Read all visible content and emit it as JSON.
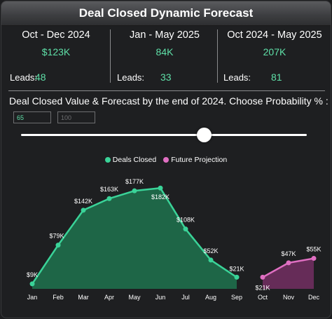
{
  "header": {
    "title": "Deal Closed Dynamic Forecast"
  },
  "kpis": [
    {
      "period": "Oct - Dec 2024",
      "amount": "$123K",
      "leads_label": "Leads:",
      "leads": "48"
    },
    {
      "period": "Jan - May 2025",
      "amount": "84K",
      "leads_label": "Leads:",
      "leads": "33"
    },
    {
      "period": "Oct 2024 - May 2025",
      "amount": "207K",
      "leads_label": "Leads:",
      "leads": "81"
    }
  ],
  "subtitle": "Deal Closed Value & Forecast by the end of 2024.  Choose Probability % :",
  "probability": {
    "min_value": "65",
    "max_value": "100",
    "slider_level": 0.64
  },
  "colors": {
    "accent": "#5fe0a8",
    "deals": "#3ad398",
    "projection": "#e06fc2"
  },
  "chart_data": {
    "type": "area",
    "legend_position": "top-center",
    "grid": false,
    "categories": [
      "Jan",
      "Feb",
      "Mar",
      "Apr",
      "May",
      "Jun",
      "Jul",
      "Aug",
      "Sep",
      "Oct",
      "Nov",
      "Dec"
    ],
    "ylim": [
      0,
      200
    ],
    "series": [
      {
        "name": "Deals Closed",
        "color": "#3ad398",
        "values": [
          9,
          79,
          142,
          163,
          177,
          182,
          108,
          52,
          21,
          null,
          null,
          null
        ],
        "labels": [
          "$9K",
          "$79K",
          "$142K",
          "$163K",
          "$177K",
          "$182K",
          "$108K",
          "$52K",
          "$21K",
          "",
          "",
          ""
        ]
      },
      {
        "name": "Future Projection",
        "color": "#e06fc2",
        "values": [
          null,
          null,
          null,
          null,
          null,
          null,
          null,
          null,
          null,
          21,
          47,
          55
        ],
        "labels": [
          "",
          "",
          "",
          "",
          "",
          "",
          "",
          "",
          "",
          "$21K",
          "$47K",
          "$55K"
        ]
      }
    ]
  }
}
